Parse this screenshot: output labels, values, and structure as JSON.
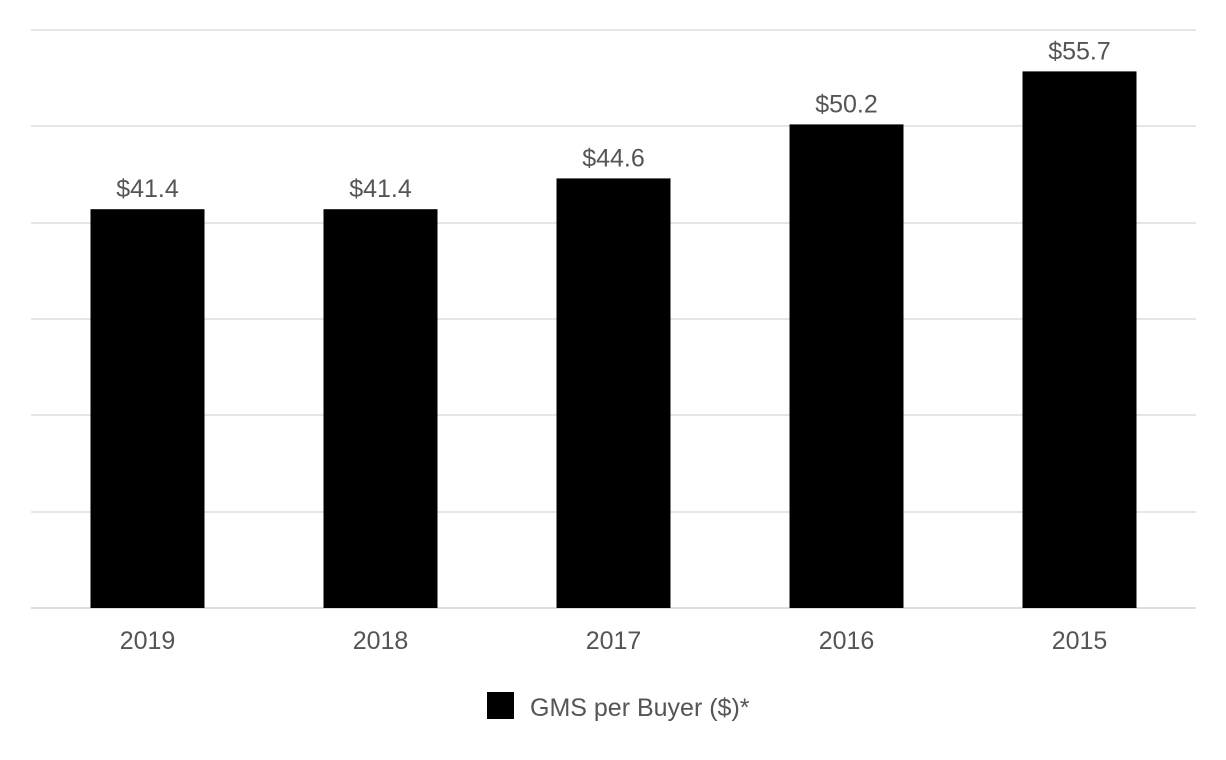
{
  "chart_data": {
    "type": "bar",
    "categories": [
      "2019",
      "2018",
      "2017",
      "2016",
      "2015"
    ],
    "series": [
      {
        "name": "GMS per Buyer ($)*",
        "values": [
          41.4,
          41.4,
          44.6,
          50.2,
          55.7
        ],
        "value_labels": [
          "$41.4",
          "$41.4",
          "$44.6",
          "$50.2",
          "$55.7"
        ],
        "color": "#000000"
      }
    ],
    "title": "",
    "xlabel": "",
    "ylabel": "",
    "ylim": [
      0,
      60
    ],
    "grid": true,
    "legend": "bottom-center"
  }
}
